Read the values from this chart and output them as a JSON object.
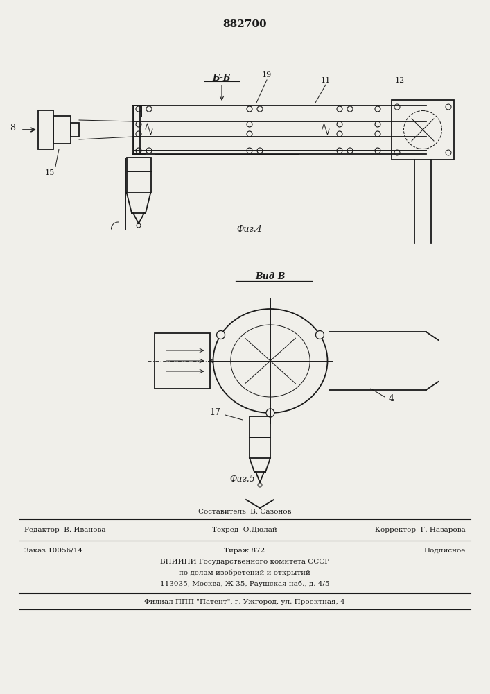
{
  "title_number": "882700",
  "fig4_label": "Фиг.4",
  "fig5_label": "Фиг.5",
  "section_label": "Б-Б",
  "view_label": "Вид В",
  "bg_color": "#f0efea",
  "line_color": "#1a1a1a",
  "footer": {
    "line0_center": "Составитель  В. Сазонов",
    "line1_left": "Редактор  В. Иванова",
    "line1_center": "Техред  О.Дюлай",
    "line1_right": "Корректор  Г. Назарова",
    "line2_left": "Заказ 10056/14",
    "line2_center": "Тираж 872",
    "line2_right": "Подписное",
    "line3": "ВНИИПИ Государственного комитета СССР",
    "line4": "по делам изобретений и открытий",
    "line5": "113035, Москва, Ж-35, Раушская наб., д. 4/5",
    "line6": "Филиал ППП \"Патент\", г. Ужгород, ул. Проектная, 4"
  }
}
